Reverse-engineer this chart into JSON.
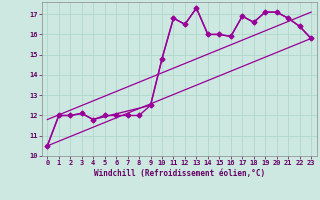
{
  "xlabel": "Windchill (Refroidissement éolien,°C)",
  "background_color": "#cce8e0",
  "grid_color": "#aad4c8",
  "line_color": "#990099",
  "xlim": [
    -0.5,
    23.5
  ],
  "ylim": [
    10,
    17.6
  ],
  "yticks": [
    10,
    11,
    12,
    13,
    14,
    15,
    16,
    17
  ],
  "xticks": [
    0,
    1,
    2,
    3,
    4,
    5,
    6,
    7,
    8,
    9,
    10,
    11,
    12,
    13,
    14,
    15,
    16,
    17,
    18,
    19,
    20,
    21,
    22,
    23
  ],
  "series": [
    {
      "x": [
        0,
        1,
        2,
        3,
        4,
        5,
        6,
        7,
        8,
        9,
        10,
        11,
        12,
        13,
        14,
        15,
        16,
        17,
        18,
        19,
        20,
        21,
        22,
        23
      ],
      "y": [
        10.5,
        12.0,
        12.0,
        12.1,
        11.8,
        12.0,
        12.0,
        12.0,
        12.0,
        12.5,
        14.8,
        16.8,
        16.5,
        17.3,
        16.0,
        16.0,
        15.9,
        16.9,
        16.6,
        17.1,
        17.1,
        16.8,
        16.4,
        15.8
      ],
      "marker": "D",
      "markersize": 2.5,
      "linewidth": 1.0
    },
    {
      "x": [
        0,
        1,
        2,
        3,
        4,
        9,
        10,
        11,
        12,
        13,
        14,
        15,
        16,
        17,
        18,
        19,
        20,
        21,
        22,
        23
      ],
      "y": [
        10.5,
        12.0,
        12.0,
        12.1,
        11.8,
        12.5,
        14.8,
        16.8,
        16.5,
        17.3,
        16.0,
        16.0,
        15.9,
        16.9,
        16.6,
        17.1,
        17.1,
        16.8,
        16.4,
        15.8
      ],
      "marker": null,
      "markersize": 0,
      "linewidth": 1.0
    },
    {
      "x": [
        0,
        23
      ],
      "y": [
        11.8,
        17.1
      ],
      "marker": null,
      "markersize": 0,
      "linewidth": 0.9
    },
    {
      "x": [
        0,
        23
      ],
      "y": [
        10.5,
        15.8
      ],
      "marker": null,
      "markersize": 0,
      "linewidth": 0.9
    }
  ]
}
